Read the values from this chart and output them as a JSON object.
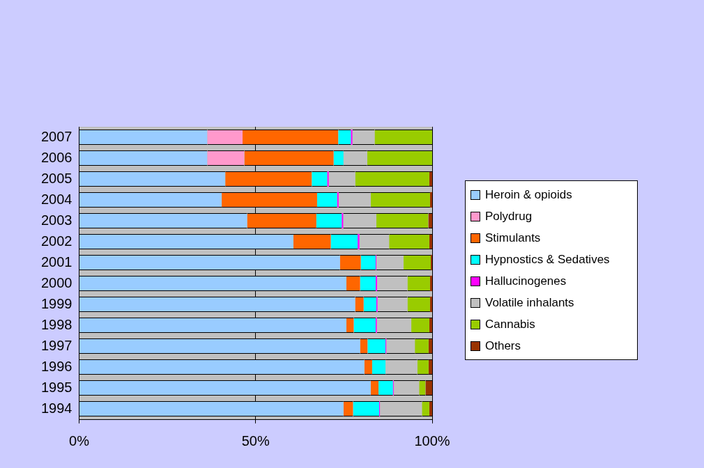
{
  "chart_data": {
    "type": "bar",
    "orientation": "horizontal",
    "stacked": true,
    "categories": [
      "2007",
      "2006",
      "2005",
      "2004",
      "2003",
      "2002",
      "2001",
      "2000",
      "1999",
      "1998",
      "1997",
      "1996",
      "1995",
      "1994"
    ],
    "series": [
      {
        "name": "Heroin & opioids",
        "color": "#99ccff",
        "values": [
          36.3,
          36.3,
          41.4,
          40.4,
          47.6,
          60.7,
          73.9,
          75.7,
          78.2,
          75.7,
          79.6,
          80.8,
          82.6,
          74.9
        ]
      },
      {
        "name": "Polydrug",
        "color": "#ff99cc",
        "values": [
          10.0,
          10.5,
          0,
          0,
          0,
          0,
          0,
          0,
          0,
          0,
          0,
          0,
          0,
          0
        ]
      },
      {
        "name": "Stimulants",
        "color": "#ff6600",
        "values": [
          27.1,
          25.3,
          24.5,
          27.0,
          19.6,
          10.6,
          5.9,
          3.9,
          2.4,
          2.1,
          2.1,
          2.2,
          2.2,
          2.7
        ]
      },
      {
        "name": "Hypnostics & Sedatives",
        "color": "#00ffff",
        "values": [
          3.6,
          2.8,
          4.4,
          5.7,
          7.2,
          7.6,
          4.2,
          4.4,
          3.6,
          6.2,
          5.1,
          3.8,
          4.1,
          7.4
        ]
      },
      {
        "name": "Hallucinogenes",
        "color": "#ff00ff",
        "values": [
          0.4,
          0,
          0.4,
          0.4,
          0.4,
          0.5,
          0.2,
          0.4,
          0.3,
          0.3,
          0.2,
          0,
          0.2,
          0.2
        ]
      },
      {
        "name": "Volatile inhalants",
        "color": "#c0c0c0",
        "values": [
          6.3,
          6.7,
          7.5,
          9.1,
          9.4,
          8.4,
          7.7,
          8.6,
          8.5,
          9.8,
          8.1,
          9.0,
          7.2,
          11.9
        ]
      },
      {
        "name": "Cannabis",
        "color": "#99cc00",
        "values": [
          16.3,
          18.4,
          21.0,
          16.8,
          14.7,
          11.4,
          7.7,
          6.4,
          6.4,
          5.1,
          3.9,
          3.2,
          1.8,
          2.1
        ]
      },
      {
        "name": "Others",
        "color": "#993300",
        "values": [
          0,
          0,
          0.8,
          0.6,
          1.1,
          0.8,
          0.4,
          0.6,
          0.6,
          0.8,
          1.0,
          1.0,
          1.9,
          0.8
        ]
      }
    ],
    "xlim": [
      0,
      100
    ],
    "xticks": [
      {
        "value": 0,
        "label": "0%"
      },
      {
        "value": 50,
        "label": "50%"
      },
      {
        "value": 100,
        "label": "100%"
      }
    ],
    "grid": "x",
    "legend": "right"
  }
}
